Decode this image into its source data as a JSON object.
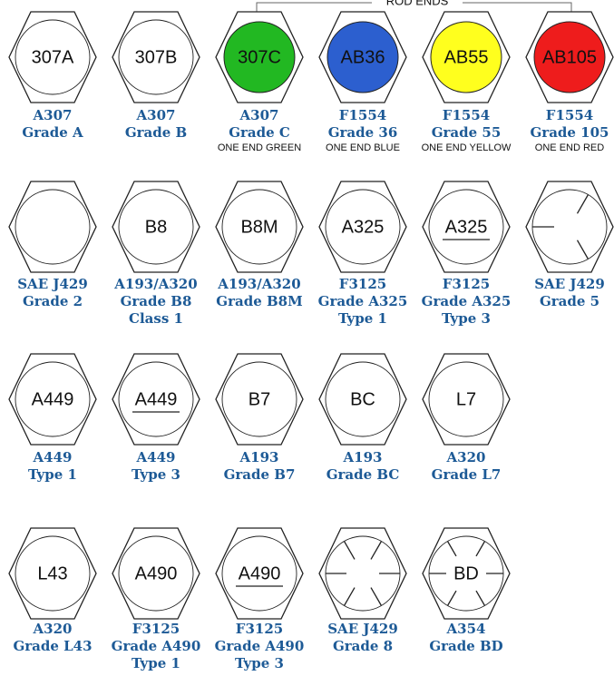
{
  "bracket_label": "ROD ENDS",
  "rows": [
    [
      {
        "marking": "307A",
        "label": [
          "A307",
          "Grade A"
        ]
      },
      {
        "marking": "307B",
        "label": [
          "A307",
          "Grade B"
        ]
      },
      {
        "marking": "307C",
        "label": [
          "A307",
          "Grade C"
        ],
        "note": "ONE END GREEN"
      },
      {
        "marking": "AB36",
        "label": [
          "F1554",
          "Grade 36"
        ],
        "note": "ONE END BLUE"
      },
      {
        "marking": "AB55",
        "label": [
          "F1554",
          "Grade 55"
        ],
        "note": "ONE END YELLOW"
      },
      {
        "marking": "AB105",
        "label": [
          "F1554",
          "Grade 105"
        ],
        "note": "ONE END RED"
      }
    ],
    [
      {
        "label": [
          "SAE J429",
          "Grade 2"
        ]
      },
      {
        "marking": "B8",
        "label": [
          "A193/A320",
          "Grade B8",
          "Class 1"
        ]
      },
      {
        "marking": "B8M",
        "label": [
          "A193/A320",
          "Grade B8M"
        ]
      },
      {
        "marking": "A325",
        "label": [
          "F3125",
          "Grade A325",
          "Type 1"
        ]
      },
      {
        "marking": "A325",
        "label": [
          "F3125",
          "Grade A325",
          "Type 3"
        ]
      },
      {
        "label": [
          "SAE J429",
          "Grade 5"
        ]
      }
    ],
    [
      {
        "marking": "A449",
        "label": [
          "A449",
          "Type 1"
        ]
      },
      {
        "marking": "A449",
        "label": [
          "A449",
          "Type 3"
        ]
      },
      {
        "marking": "B7",
        "label": [
          "A193",
          "Grade B7"
        ]
      },
      {
        "marking": "BC",
        "label": [
          "A193",
          "Grade BC"
        ]
      },
      {
        "marking": "L7",
        "label": [
          "A320",
          "Grade L7"
        ]
      }
    ],
    [
      {
        "marking": "L43",
        "label": [
          "A320",
          "Grade L43"
        ]
      },
      {
        "marking": "A490",
        "label": [
          "F3125",
          "Grade A490",
          "Type 1"
        ]
      },
      {
        "marking": "A490",
        "label": [
          "F3125",
          "Grade A490",
          "Type 3"
        ]
      },
      {
        "label": [
          "SAE J429",
          "Grade 8"
        ]
      },
      {
        "marking": "BD",
        "label": [
          "A354",
          "Grade BD"
        ]
      }
    ]
  ]
}
